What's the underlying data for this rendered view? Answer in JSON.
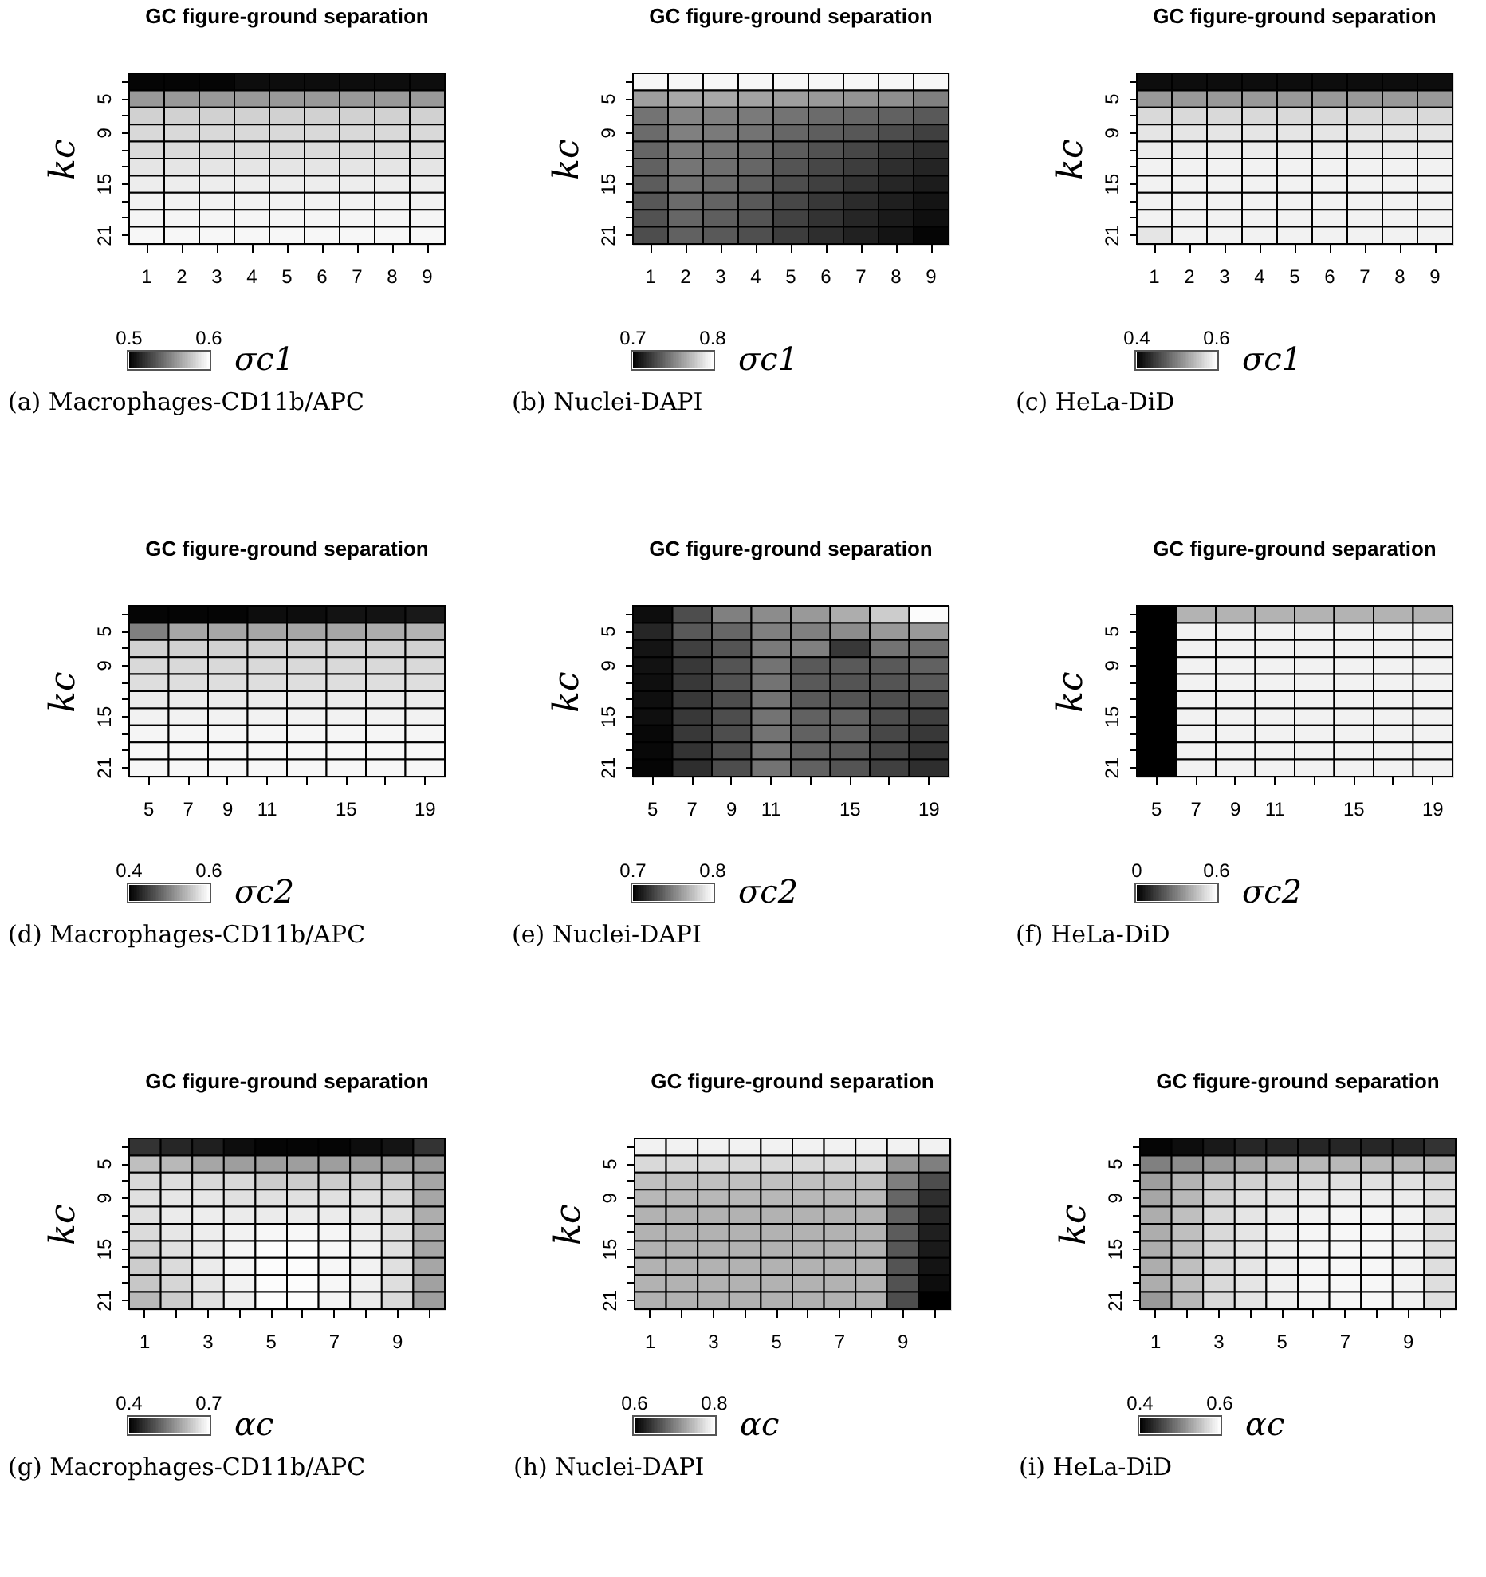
{
  "chart_data": [
    {
      "type": "heatmap",
      "title": "GC figure-ground separation",
      "xlabel": "σc1",
      "ylabel": "kc",
      "annotations": [
        "(a) Macrophages-CD11b/APC"
      ],
      "categories": [
        "1",
        "2",
        "3",
        "4",
        "5",
        "6",
        "7",
        "8",
        "9"
      ],
      "y_categories": [
        null,
        "5",
        null,
        "9",
        null,
        null,
        "15",
        null,
        null,
        "21"
      ],
      "clim": [
        0.5,
        0.6
      ],
      "cticks": [
        0.5,
        0.6
      ],
      "cells": [
        [
          0.502,
          0.502,
          0.502,
          0.505,
          0.505,
          0.505,
          0.505,
          0.505,
          0.505
        ],
        [
          0.56,
          0.56,
          0.56,
          0.56,
          0.56,
          0.56,
          0.56,
          0.56,
          0.56
        ],
        [
          0.582,
          0.582,
          0.582,
          0.582,
          0.582,
          0.582,
          0.582,
          0.582,
          0.582
        ],
        [
          0.585,
          0.585,
          0.585,
          0.585,
          0.585,
          0.585,
          0.585,
          0.585,
          0.585
        ],
        [
          0.586,
          0.586,
          0.586,
          0.586,
          0.586,
          0.586,
          0.586,
          0.586,
          0.586
        ],
        [
          0.59,
          0.59,
          0.59,
          0.59,
          0.59,
          0.59,
          0.59,
          0.59,
          0.59
        ],
        [
          0.593,
          0.593,
          0.593,
          0.593,
          0.593,
          0.593,
          0.593,
          0.593,
          0.593
        ],
        [
          0.595,
          0.595,
          0.595,
          0.595,
          0.595,
          0.595,
          0.595,
          0.595,
          0.595
        ],
        [
          0.596,
          0.596,
          0.596,
          0.596,
          0.596,
          0.596,
          0.596,
          0.596,
          0.596
        ],
        [
          0.597,
          0.597,
          0.597,
          0.597,
          0.597,
          0.597,
          0.597,
          0.597,
          0.597
        ]
      ]
    },
    {
      "type": "heatmap",
      "title": "GC figure-ground separation",
      "xlabel": "σc1",
      "ylabel": "kc",
      "annotations": [
        "(b) Nuclei-DAPI"
      ],
      "categories": [
        "1",
        "2",
        "3",
        "4",
        "5",
        "6",
        "7",
        "8",
        "9"
      ],
      "y_categories": [
        null,
        "5",
        null,
        "9",
        null,
        null,
        "15",
        null,
        null,
        "21"
      ],
      "clim": [
        0.7,
        0.8
      ],
      "cticks": [
        0.7,
        0.8
      ],
      "cells": [
        [
          0.797,
          0.797,
          0.797,
          0.797,
          0.797,
          0.797,
          0.797,
          0.797,
          0.797
        ],
        [
          0.762,
          0.766,
          0.766,
          0.764,
          0.762,
          0.76,
          0.758,
          0.756,
          0.75
        ],
        [
          0.745,
          0.752,
          0.75,
          0.748,
          0.745,
          0.742,
          0.74,
          0.738,
          0.735
        ],
        [
          0.742,
          0.75,
          0.748,
          0.745,
          0.74,
          0.737,
          0.734,
          0.73,
          0.725
        ],
        [
          0.74,
          0.748,
          0.745,
          0.742,
          0.736,
          0.732,
          0.728,
          0.722,
          0.718
        ],
        [
          0.738,
          0.746,
          0.743,
          0.74,
          0.733,
          0.728,
          0.724,
          0.718,
          0.714
        ],
        [
          0.736,
          0.744,
          0.741,
          0.737,
          0.73,
          0.725,
          0.72,
          0.715,
          0.711
        ],
        [
          0.734,
          0.742,
          0.739,
          0.735,
          0.728,
          0.722,
          0.717,
          0.712,
          0.708
        ],
        [
          0.732,
          0.74,
          0.737,
          0.733,
          0.726,
          0.72,
          0.715,
          0.71,
          0.706
        ],
        [
          0.73,
          0.738,
          0.735,
          0.731,
          0.724,
          0.718,
          0.713,
          0.708,
          0.702
        ]
      ]
    },
    {
      "type": "heatmap",
      "title": "GC figure-ground separation",
      "xlabel": "σc1",
      "ylabel": "kc",
      "annotations": [
        "(c) HeLa-DiD"
      ],
      "categories": [
        "1",
        "2",
        "3",
        "4",
        "5",
        "6",
        "7",
        "8",
        "9"
      ],
      "y_categories": [
        null,
        "5",
        null,
        "9",
        null,
        null,
        "15",
        null,
        null,
        "21"
      ],
      "clim": [
        0.4,
        0.6
      ],
      "cticks": [
        0.4,
        0.6
      ],
      "cells": [
        [
          0.41,
          0.41,
          0.41,
          0.41,
          0.41,
          0.41,
          0.41,
          0.41,
          0.41
        ],
        [
          0.52,
          0.52,
          0.52,
          0.52,
          0.52,
          0.52,
          0.52,
          0.52,
          0.52
        ],
        [
          0.57,
          0.57,
          0.57,
          0.57,
          0.57,
          0.57,
          0.57,
          0.57,
          0.57
        ],
        [
          0.58,
          0.58,
          0.58,
          0.58,
          0.58,
          0.58,
          0.58,
          0.58,
          0.58
        ],
        [
          0.584,
          0.584,
          0.584,
          0.584,
          0.584,
          0.584,
          0.584,
          0.584,
          0.584
        ],
        [
          0.59,
          0.59,
          0.59,
          0.59,
          0.59,
          0.59,
          0.59,
          0.59,
          0.59
        ],
        [
          0.59,
          0.59,
          0.59,
          0.59,
          0.59,
          0.59,
          0.59,
          0.59,
          0.59
        ],
        [
          0.59,
          0.59,
          0.59,
          0.59,
          0.59,
          0.59,
          0.59,
          0.59,
          0.59
        ],
        [
          0.59,
          0.59,
          0.59,
          0.59,
          0.59,
          0.59,
          0.59,
          0.59,
          0.59
        ],
        [
          0.58,
          0.59,
          0.59,
          0.59,
          0.59,
          0.59,
          0.59,
          0.59,
          0.59
        ]
      ]
    },
    {
      "type": "heatmap",
      "title": "GC figure-ground separation",
      "xlabel": "σc2",
      "ylabel": "kc",
      "annotations": [
        "(d) Macrophages-CD11b/APC"
      ],
      "categories": [
        "5",
        "7",
        "9",
        "11",
        null,
        "15",
        null,
        "19"
      ],
      "y_categories": [
        null,
        "5",
        null,
        "9",
        null,
        null,
        "15",
        null,
        null,
        "21"
      ],
      "clim": [
        0.4,
        0.6
      ],
      "cticks": [
        0.4,
        0.6
      ],
      "cells": [
        [
          0.404,
          0.404,
          0.404,
          0.41,
          0.41,
          0.415,
          0.415,
          0.42
        ],
        [
          0.5,
          0.53,
          0.53,
          0.53,
          0.53,
          0.53,
          0.535,
          0.54
        ],
        [
          0.564,
          0.564,
          0.564,
          0.564,
          0.564,
          0.564,
          0.564,
          0.564
        ],
        [
          0.57,
          0.57,
          0.57,
          0.57,
          0.57,
          0.57,
          0.57,
          0.57
        ],
        [
          0.574,
          0.574,
          0.574,
          0.574,
          0.574,
          0.574,
          0.574,
          0.574
        ],
        [
          0.584,
          0.584,
          0.584,
          0.584,
          0.584,
          0.584,
          0.584,
          0.584
        ],
        [
          0.59,
          0.59,
          0.59,
          0.59,
          0.59,
          0.59,
          0.59,
          0.59
        ],
        [
          0.592,
          0.592,
          0.592,
          0.592,
          0.592,
          0.592,
          0.592,
          0.592
        ],
        [
          0.594,
          0.594,
          0.594,
          0.594,
          0.594,
          0.594,
          0.594,
          0.594
        ],
        [
          0.594,
          0.594,
          0.594,
          0.594,
          0.594,
          0.594,
          0.594,
          0.594
        ]
      ]
    },
    {
      "type": "heatmap",
      "title": "GC figure-ground separation",
      "xlabel": "σc2",
      "ylabel": "kc",
      "annotations": [
        "(e) Nuclei-DAPI"
      ],
      "categories": [
        "5",
        "7",
        "9",
        "11",
        null,
        "15",
        null,
        "19"
      ],
      "y_categories": [
        null,
        "5",
        null,
        "9",
        null,
        null,
        "15",
        null,
        null,
        "21"
      ],
      "clim": [
        0.7,
        0.8
      ],
      "cticks": [
        0.7,
        0.8
      ],
      "cells": [
        [
          0.705,
          0.73,
          0.75,
          0.755,
          0.76,
          0.768,
          0.78,
          0.799
        ],
        [
          0.715,
          0.735,
          0.74,
          0.75,
          0.75,
          0.755,
          0.76,
          0.76
        ],
        [
          0.708,
          0.725,
          0.733,
          0.748,
          0.75,
          0.722,
          0.745,
          0.742
        ],
        [
          0.707,
          0.722,
          0.733,
          0.745,
          0.735,
          0.735,
          0.735,
          0.738
        ],
        [
          0.706,
          0.722,
          0.732,
          0.745,
          0.735,
          0.733,
          0.733,
          0.735
        ],
        [
          0.706,
          0.722,
          0.73,
          0.745,
          0.735,
          0.733,
          0.73,
          0.73
        ],
        [
          0.706,
          0.722,
          0.73,
          0.745,
          0.738,
          0.738,
          0.73,
          0.725
        ],
        [
          0.703,
          0.722,
          0.73,
          0.745,
          0.738,
          0.738,
          0.728,
          0.722
        ],
        [
          0.703,
          0.72,
          0.73,
          0.745,
          0.738,
          0.735,
          0.727,
          0.72
        ],
        [
          0.702,
          0.718,
          0.73,
          0.745,
          0.738,
          0.733,
          0.725,
          0.718
        ]
      ]
    },
    {
      "type": "heatmap",
      "title": "GC figure-ground separation",
      "xlabel": "σc2",
      "ylabel": "kc",
      "annotations": [
        "(f) HeLa-DiD"
      ],
      "categories": [
        "5",
        "7",
        "9",
        "11",
        null,
        "15",
        null,
        "19"
      ],
      "y_categories": [
        null,
        "5",
        null,
        "9",
        null,
        null,
        "15",
        null,
        null,
        "21"
      ],
      "clim": [
        0,
        0.6
      ],
      "cticks": [
        0,
        0.6
      ],
      "cells": [
        [
          0.0,
          0.42,
          0.42,
          0.42,
          0.42,
          0.42,
          0.42,
          0.42
        ],
        [
          0.0,
          0.57,
          0.57,
          0.57,
          0.57,
          0.57,
          0.57,
          0.57
        ],
        [
          0.0,
          0.57,
          0.57,
          0.57,
          0.57,
          0.57,
          0.57,
          0.57
        ],
        [
          0.0,
          0.57,
          0.57,
          0.57,
          0.57,
          0.57,
          0.57,
          0.57
        ],
        [
          0.0,
          0.57,
          0.57,
          0.57,
          0.57,
          0.57,
          0.57,
          0.57
        ],
        [
          0.0,
          0.57,
          0.57,
          0.57,
          0.57,
          0.57,
          0.57,
          0.57
        ],
        [
          0.0,
          0.57,
          0.57,
          0.57,
          0.57,
          0.57,
          0.57,
          0.57
        ],
        [
          0.0,
          0.57,
          0.57,
          0.57,
          0.57,
          0.57,
          0.57,
          0.57
        ],
        [
          0.0,
          0.57,
          0.57,
          0.57,
          0.57,
          0.57,
          0.57,
          0.57
        ],
        [
          0.0,
          0.57,
          0.57,
          0.57,
          0.57,
          0.57,
          0.57,
          0.57
        ]
      ]
    },
    {
      "type": "heatmap",
      "title": "GC figure-ground separation",
      "xlabel": "αc",
      "ylabel": "kc",
      "annotations": [
        "(g) Macrophages-CD11b/APC"
      ],
      "categories": [
        "1",
        null,
        "3",
        null,
        "5",
        null,
        "7",
        null,
        "9",
        null
      ],
      "y_categories": [
        null,
        "5",
        null,
        "9",
        null,
        null,
        "15",
        null,
        null,
        "21"
      ],
      "clim": [
        0.4,
        0.7
      ],
      "cticks": [
        0.4,
        0.7
      ],
      "cells": [
        [
          0.46,
          0.445,
          0.436,
          0.415,
          0.406,
          0.406,
          0.406,
          0.415,
          0.424,
          0.46
        ],
        [
          0.625,
          0.616,
          0.595,
          0.586,
          0.586,
          0.586,
          0.586,
          0.586,
          0.586,
          0.58
        ],
        [
          0.655,
          0.661,
          0.655,
          0.655,
          0.64,
          0.64,
          0.64,
          0.64,
          0.64,
          0.595
        ],
        [
          0.664,
          0.67,
          0.67,
          0.664,
          0.664,
          0.664,
          0.664,
          0.664,
          0.655,
          0.595
        ],
        [
          0.664,
          0.676,
          0.679,
          0.676,
          0.676,
          0.676,
          0.676,
          0.67,
          0.661,
          0.604
        ],
        [
          0.658,
          0.67,
          0.679,
          0.685,
          0.691,
          0.691,
          0.688,
          0.679,
          0.664,
          0.604
        ],
        [
          0.646,
          0.664,
          0.676,
          0.688,
          0.697,
          0.697,
          0.691,
          0.685,
          0.664,
          0.595
        ],
        [
          0.64,
          0.658,
          0.676,
          0.688,
          0.697,
          0.697,
          0.691,
          0.685,
          0.664,
          0.595
        ],
        [
          0.634,
          0.652,
          0.67,
          0.685,
          0.697,
          0.697,
          0.691,
          0.682,
          0.661,
          0.589
        ],
        [
          0.616,
          0.64,
          0.664,
          0.679,
          0.697,
          0.697,
          0.688,
          0.676,
          0.655,
          0.586
        ]
      ]
    },
    {
      "type": "heatmap",
      "title": "GC figure-ground separation",
      "xlabel": "αc",
      "ylabel": "kc",
      "annotations": [
        "(h) Nuclei-DAPI"
      ],
      "categories": [
        "1",
        null,
        "3",
        null,
        "5",
        null,
        "7",
        null,
        "9",
        null
      ],
      "y_categories": [
        null,
        "5",
        null,
        "9",
        null,
        null,
        "15",
        null,
        null,
        "21"
      ],
      "clim": [
        0.6,
        0.8
      ],
      "cticks": [
        0.6,
        0.8
      ],
      "cells": [
        [
          0.79,
          0.79,
          0.79,
          0.79,
          0.79,
          0.79,
          0.79,
          0.79,
          0.79,
          0.79
        ],
        [
          0.77,
          0.77,
          0.77,
          0.77,
          0.77,
          0.77,
          0.77,
          0.77,
          0.72,
          0.7
        ],
        [
          0.75,
          0.75,
          0.75,
          0.75,
          0.75,
          0.75,
          0.75,
          0.75,
          0.7,
          0.66
        ],
        [
          0.744,
          0.744,
          0.744,
          0.744,
          0.744,
          0.744,
          0.744,
          0.744,
          0.68,
          0.636
        ],
        [
          0.74,
          0.74,
          0.74,
          0.74,
          0.74,
          0.74,
          0.74,
          0.74,
          0.676,
          0.63
        ],
        [
          0.74,
          0.74,
          0.74,
          0.74,
          0.74,
          0.74,
          0.74,
          0.74,
          0.672,
          0.624
        ],
        [
          0.74,
          0.74,
          0.74,
          0.74,
          0.74,
          0.74,
          0.74,
          0.74,
          0.668,
          0.62
        ],
        [
          0.74,
          0.74,
          0.74,
          0.74,
          0.74,
          0.74,
          0.74,
          0.74,
          0.666,
          0.616
        ],
        [
          0.74,
          0.74,
          0.74,
          0.74,
          0.74,
          0.74,
          0.74,
          0.74,
          0.664,
          0.61
        ],
        [
          0.74,
          0.74,
          0.74,
          0.74,
          0.74,
          0.74,
          0.74,
          0.74,
          0.66,
          0.6
        ]
      ]
    },
    {
      "type": "heatmap",
      "title": "GC figure-ground separation",
      "xlabel": "αc",
      "ylabel": "kc",
      "annotations": [
        "(i) HeLa-DiD"
      ],
      "categories": [
        "1",
        null,
        "3",
        null,
        "5",
        null,
        "7",
        null,
        "9",
        null
      ],
      "y_categories": [
        null,
        "5",
        null,
        "9",
        null,
        null,
        "15",
        null,
        null,
        "21"
      ],
      "clim": [
        0.4,
        0.6
      ],
      "cticks": [
        0.4,
        0.6
      ],
      "cells": [
        [
          0.404,
          0.41,
          0.42,
          0.43,
          0.43,
          0.43,
          0.43,
          0.43,
          0.43,
          0.44
        ],
        [
          0.5,
          0.51,
          0.52,
          0.53,
          0.54,
          0.544,
          0.544,
          0.544,
          0.544,
          0.54
        ],
        [
          0.524,
          0.54,
          0.556,
          0.564,
          0.57,
          0.574,
          0.576,
          0.576,
          0.576,
          0.57
        ],
        [
          0.53,
          0.544,
          0.564,
          0.576,
          0.58,
          0.584,
          0.586,
          0.586,
          0.584,
          0.576
        ],
        [
          0.536,
          0.55,
          0.57,
          0.58,
          0.586,
          0.59,
          0.592,
          0.592,
          0.59,
          0.576
        ],
        [
          0.536,
          0.55,
          0.57,
          0.58,
          0.588,
          0.592,
          0.594,
          0.594,
          0.59,
          0.574
        ],
        [
          0.536,
          0.55,
          0.57,
          0.58,
          0.588,
          0.592,
          0.594,
          0.594,
          0.59,
          0.574
        ],
        [
          0.536,
          0.55,
          0.57,
          0.58,
          0.588,
          0.592,
          0.594,
          0.594,
          0.59,
          0.574
        ],
        [
          0.536,
          0.55,
          0.57,
          0.58,
          0.588,
          0.592,
          0.594,
          0.594,
          0.59,
          0.574
        ],
        [
          0.52,
          0.544,
          0.57,
          0.58,
          0.588,
          0.592,
          0.594,
          0.594,
          0.59,
          0.574
        ]
      ]
    }
  ]
}
